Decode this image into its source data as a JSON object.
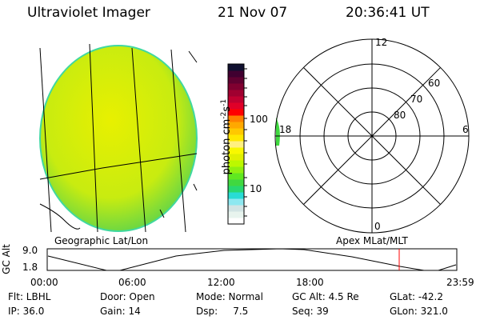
{
  "header": {
    "instrument": "Ultraviolet Imager",
    "date": "21 Nov 07",
    "time": "20:36:41 UT"
  },
  "colorbar": {
    "label": "photon cm",
    "label_exp1": "-2",
    "label_mid": "s",
    "label_exp2": "-1",
    "ticks": [
      "100",
      "10"
    ],
    "colors": [
      "#ffffff",
      "#e8f4ee",
      "#d2e4e4",
      "#8ee8f0",
      "#28dcd4",
      "#28d870",
      "#40d840",
      "#60e820",
      "#90f010",
      "#bcf800",
      "#e0f000",
      "#f8f800",
      "#fff080",
      "#ffe800",
      "#ffc800",
      "#ffa800",
      "#ff8000",
      "#ff0000",
      "#e00028",
      "#c00030",
      "#a00030",
      "#800030",
      "#600030",
      "#400030",
      "#101030"
    ]
  },
  "polar": {
    "mlt_labels": {
      "top": "12",
      "right": "6",
      "bottom": "0",
      "left": "18"
    },
    "lat_labels": [
      "80",
      "70",
      "60"
    ]
  },
  "labels": {
    "geo": "Geographic Lat/Lon",
    "apex": "Apex MLat/MLT"
  },
  "orbit": {
    "ylabel": "GC Alt",
    "ymax": "9.0",
    "ymin": "1.8",
    "xticks": [
      "00:00",
      "06:00",
      "12:00",
      "18:00",
      "23:59"
    ],
    "current_marker_color": "#ff0000",
    "current_time": "20:36:41"
  },
  "info": {
    "row1": [
      "Flt: LBHL",
      "Door: Open",
      "Mode: Normal",
      "GC Alt: 4.5 Re",
      "GLat: -42.2"
    ],
    "row2": [
      "IP: 36.0",
      "Gain: 14",
      "Dsp:     7.5",
      "Seq: 39",
      "GLon: 321.0"
    ]
  }
}
